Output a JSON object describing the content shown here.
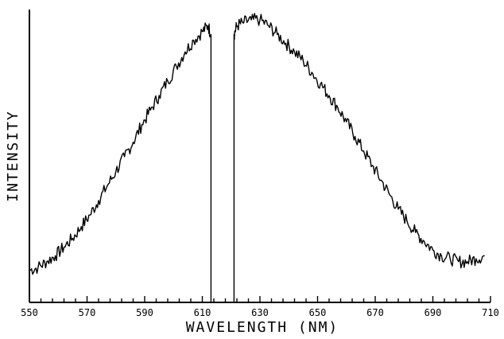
{
  "chart_data": {
    "type": "line",
    "title": "",
    "xlabel": "WAVELENGTH (NM)",
    "ylabel": "INTENSITY",
    "xlim": [
      550,
      710
    ],
    "ylim": [
      0,
      1
    ],
    "x_ticks": [
      550,
      570,
      590,
      610,
      630,
      650,
      670,
      690,
      710
    ],
    "x_tick_labels": [
      "550",
      "570",
      "590",
      "610",
      "630",
      "650",
      "670",
      "690",
      "710"
    ],
    "minor_tick_step": 4,
    "grid": false,
    "legend": "none",
    "line_color": "#000000",
    "series": [
      {
        "x": [
          550,
          553,
          556,
          559,
          562,
          565,
          568,
          571,
          574,
          577,
          580,
          583,
          586,
          589,
          592,
          595,
          598,
          601,
          604,
          607,
          610,
          612,
          613,
          613,
          621,
          621,
          622,
          624,
          627,
          630,
          633,
          636,
          639,
          642,
          645,
          648,
          651,
          654,
          657,
          660,
          663,
          666,
          669,
          672,
          675,
          678,
          681,
          684,
          687,
          690,
          693,
          696,
          699,
          702,
          705,
          708
        ],
        "y": [
          0.11,
          0.12,
          0.14,
          0.16,
          0.19,
          0.22,
          0.26,
          0.3,
          0.35,
          0.4,
          0.45,
          0.5,
          0.55,
          0.61,
          0.66,
          0.71,
          0.76,
          0.81,
          0.86,
          0.9,
          0.93,
          0.95,
          0.92,
          0.0,
          0.0,
          0.92,
          0.95,
          0.96,
          0.97,
          0.97,
          0.95,
          0.92,
          0.89,
          0.86,
          0.83,
          0.79,
          0.75,
          0.71,
          0.67,
          0.62,
          0.57,
          0.52,
          0.47,
          0.42,
          0.37,
          0.32,
          0.28,
          0.24,
          0.21,
          0.18,
          0.16,
          0.15,
          0.14,
          0.14,
          0.15,
          0.16
        ]
      }
    ]
  }
}
